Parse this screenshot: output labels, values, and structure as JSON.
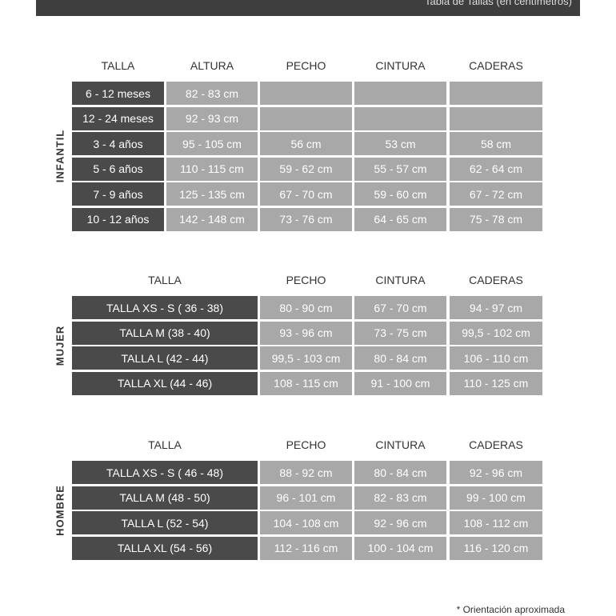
{
  "header": {
    "title": "Tabla de Tallas (en centímetros)"
  },
  "tables": [
    {
      "label": "INFANTIL",
      "headers": [
        "TALLA",
        "ALTURA",
        "PECHO",
        "CINTURA",
        "CADERAS"
      ],
      "rows": [
        [
          "6 - 12 meses",
          "82 - 83 cm",
          null,
          null,
          null
        ],
        [
          "12 - 24 meses",
          "92 - 93 cm",
          null,
          null,
          null
        ],
        [
          "3 - 4 años",
          "95 - 105 cm",
          "56 cm",
          "53 cm",
          "58 cm"
        ],
        [
          "5 - 6 años",
          "110 - 115 cm",
          "59 - 62 cm",
          "55 - 57 cm",
          "62 - 64 cm"
        ],
        [
          "7 - 9 años",
          "125 - 135 cm",
          "67 - 70 cm",
          "59 - 60 cm",
          "67 - 72 cm"
        ],
        [
          "10 - 12 años",
          "142 - 148 cm",
          "73 - 76 cm",
          "64 - 65 cm",
          "75 - 78 cm"
        ]
      ]
    },
    {
      "label": "MUJER",
      "headers": [
        "TALLA",
        "PECHO",
        "CINTURA",
        "CADERAS"
      ],
      "rows": [
        [
          "TALLA XS - S ( 36 - 38)",
          "80 - 90 cm",
          "67 - 70 cm",
          "94 - 97 cm"
        ],
        [
          "TALLA M (38 - 40)",
          "93 - 96 cm",
          "73 - 75 cm",
          "99,5 - 102 cm"
        ],
        [
          "TALLA L (42 - 44)",
          "99,5 - 103 cm",
          "80 - 84 cm",
          "106 - 110 cm"
        ],
        [
          "TALLA XL (44 - 46)",
          "108 - 115 cm",
          "91 - 100 cm",
          "110 - 125 cm"
        ]
      ]
    },
    {
      "label": "HOMBRE",
      "headers": [
        "TALLA",
        "PECHO",
        "CINTURA",
        "CADERAS"
      ],
      "rows": [
        [
          "TALLA XS - S ( 46 - 48)",
          "88 - 92 cm",
          "80 - 84 cm",
          "92 - 96 cm"
        ],
        [
          "TALLA M (48 - 50)",
          "96 - 101 cm",
          "82 - 83 cm",
          "99 - 100 cm"
        ],
        [
          "TALLA L (52 - 54)",
          "104 - 108 cm",
          "92 - 96 cm",
          "108 - 112 cm"
        ],
        [
          "TALLA XL (54 - 56)",
          "112 - 116 cm",
          "100 - 104 cm",
          "116 - 120 cm"
        ]
      ]
    }
  ],
  "footnote": "* Orientación aproximada"
}
